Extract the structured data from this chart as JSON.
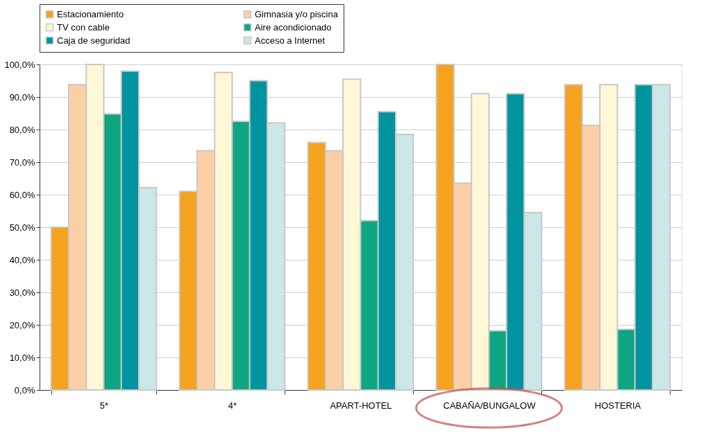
{
  "chart_data": {
    "type": "bar",
    "categories": [
      "5*",
      "4*",
      "APART-HOTEL",
      "CABAÑA/BUNGALOW",
      "HOSTERIA"
    ],
    "series": [
      {
        "name": "Estacionamiento",
        "color": "#f5a31e",
        "values": [
          50,
          61,
          76,
          100,
          93.8
        ]
      },
      {
        "name": "Gimnasia y/o piscina",
        "color": "#fccfa7",
        "values": [
          93.8,
          73.5,
          73.5,
          63.5,
          81.3
        ]
      },
      {
        "name": "TV con cable",
        "color": "#fff8d6",
        "values": [
          100,
          97.5,
          95.5,
          91,
          93.8
        ]
      },
      {
        "name": "Aire acondicionado",
        "color": "#0da582",
        "values": [
          84.8,
          82.5,
          52,
          18.2,
          18.6
        ]
      },
      {
        "name": "Caja de seguridad",
        "color": "#0094a1",
        "values": [
          97.9,
          95,
          85.5,
          91,
          93.8
        ]
      },
      {
        "name": "Acceso a Internet",
        "color": "#cbe7e8",
        "values": [
          62.2,
          82,
          78.5,
          54.5,
          93.8
        ]
      }
    ],
    "ylim": [
      0,
      100
    ],
    "yticks": [
      {
        "value": 0,
        "label": "0,0%"
      },
      {
        "value": 10,
        "label": "10,0%"
      },
      {
        "value": 20,
        "label": "20,0%"
      },
      {
        "value": 30,
        "label": "30,0%"
      },
      {
        "value": 40,
        "label": "40,0%"
      },
      {
        "value": 50,
        "label": "50,0%"
      },
      {
        "value": 60,
        "label": "60,0%"
      },
      {
        "value": 70,
        "label": "70,0%"
      },
      {
        "value": 80,
        "label": "80,0%"
      },
      {
        "value": 90,
        "label": "90,0%"
      },
      {
        "value": 100,
        "label": "100,0%"
      }
    ],
    "grid": "y",
    "legend": "top"
  }
}
